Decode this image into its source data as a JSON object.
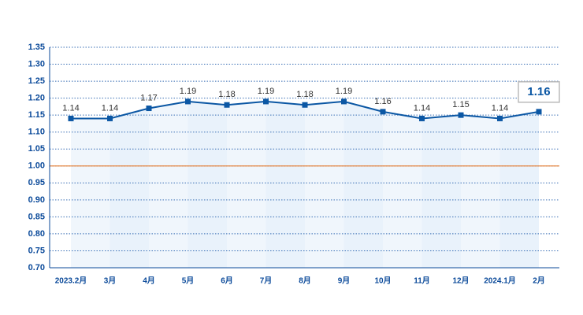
{
  "chart_data": {
    "type": "line",
    "categories": [
      "2023.2月",
      "3月",
      "4月",
      "5月",
      "6月",
      "7月",
      "8月",
      "9月",
      "10月",
      "11月",
      "12月",
      "2024.1月",
      "2月"
    ],
    "values": [
      1.14,
      1.14,
      1.17,
      1.19,
      1.18,
      1.19,
      1.18,
      1.19,
      1.16,
      1.14,
      1.15,
      1.14,
      1.16
    ],
    "color": "#0b57a4",
    "ylim": [
      0.7,
      1.35
    ],
    "yticks": [
      {
        "value": 0.7,
        "label": "0.70"
      },
      {
        "value": 0.75,
        "label": "0.75"
      },
      {
        "value": 0.8,
        "label": "0.80"
      },
      {
        "value": 0.85,
        "label": "0.85"
      },
      {
        "value": 0.9,
        "label": "0.90"
      },
      {
        "value": 0.95,
        "label": "0.95"
      },
      {
        "value": 1.0,
        "label": "1.00"
      },
      {
        "value": 1.05,
        "label": "1.05"
      },
      {
        "value": 1.1,
        "label": "1.10"
      },
      {
        "value": 1.15,
        "label": "1.15"
      },
      {
        "value": 1.2,
        "label": "1.20"
      },
      {
        "value": 1.25,
        "label": "1.25"
      },
      {
        "value": 1.3,
        "label": "1.30"
      },
      {
        "value": 1.35,
        "label": "1.35"
      }
    ],
    "grid": true,
    "reference_line": {
      "value": 1.0,
      "color": "#e8843c"
    }
  }
}
